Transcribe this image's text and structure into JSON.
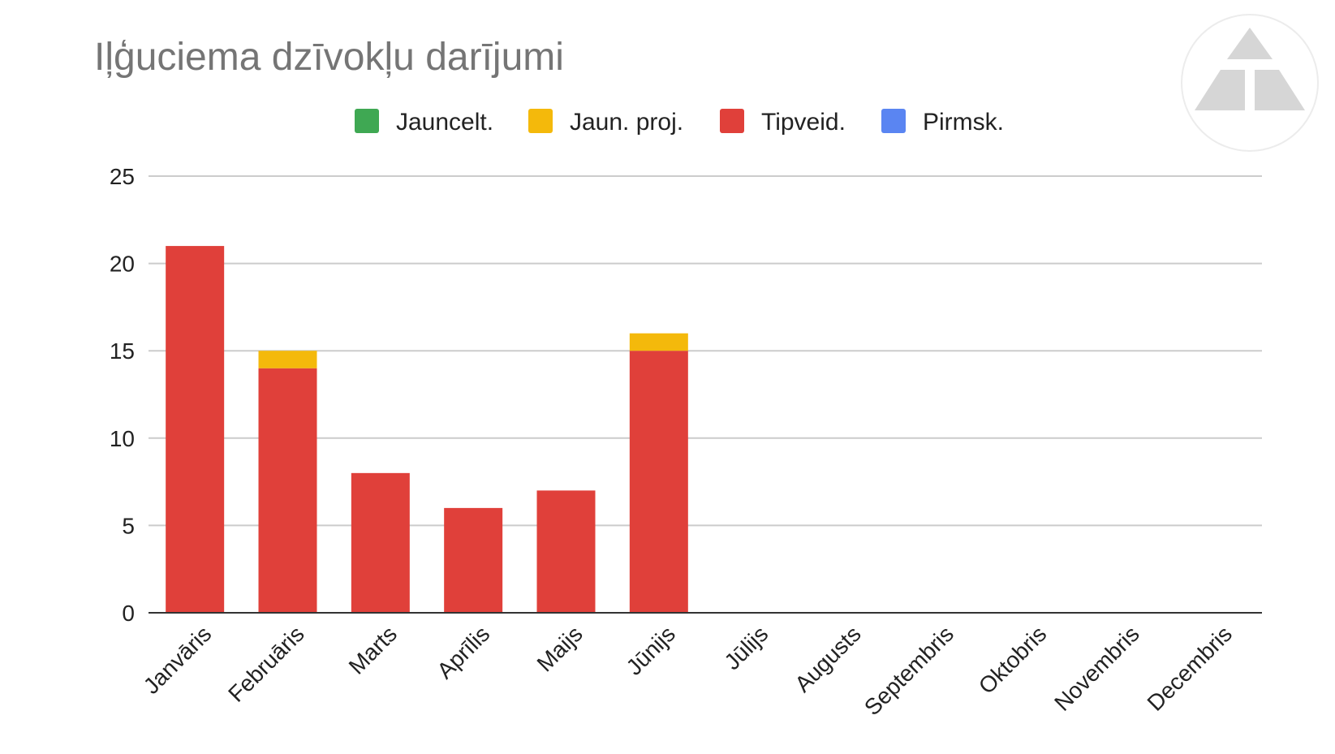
{
  "chart_data": {
    "type": "bar",
    "stacked": true,
    "title": "Iļģuciema dzīvokļu darījumi",
    "xlabel": "",
    "ylabel": "",
    "ylim": [
      0,
      25
    ],
    "yticks": [
      0,
      5,
      10,
      15,
      20,
      25
    ],
    "grid": true,
    "legend_position": "top",
    "categories": [
      "Janvāris",
      "Februāris",
      "Marts",
      "Aprīlis",
      "Maijs",
      "Jūnijs",
      "Jūlijs",
      "Augusts",
      "Septembris",
      "Oktobris",
      "Novembris",
      "Decembris"
    ],
    "series": [
      {
        "name": "Jauncelt.",
        "color": "#3fa853",
        "values": [
          0,
          0,
          0,
          0,
          0,
          0,
          0,
          0,
          0,
          0,
          0,
          0
        ]
      },
      {
        "name": "Tipveid.",
        "color": "#e0403a",
        "values": [
          21,
          14,
          8,
          6,
          7,
          15,
          0,
          0,
          0,
          0,
          0,
          0
        ]
      },
      {
        "name": "Jaun. proj.",
        "color": "#f4b90b",
        "values": [
          0,
          1,
          0,
          0,
          0,
          1,
          0,
          0,
          0,
          0,
          0,
          0
        ]
      },
      {
        "name": "Pirmsk.",
        "color": "#5a85f2",
        "values": [
          0,
          0,
          0,
          0,
          0,
          0,
          0,
          0,
          0,
          0,
          0,
          0
        ]
      }
    ],
    "legend_order": [
      "Jauncelt.",
      "Jaun. proj.",
      "Tipveid.",
      "Pirmsk."
    ]
  },
  "logo": {
    "name": "triangle-logo",
    "color": "#d6d6d6"
  }
}
